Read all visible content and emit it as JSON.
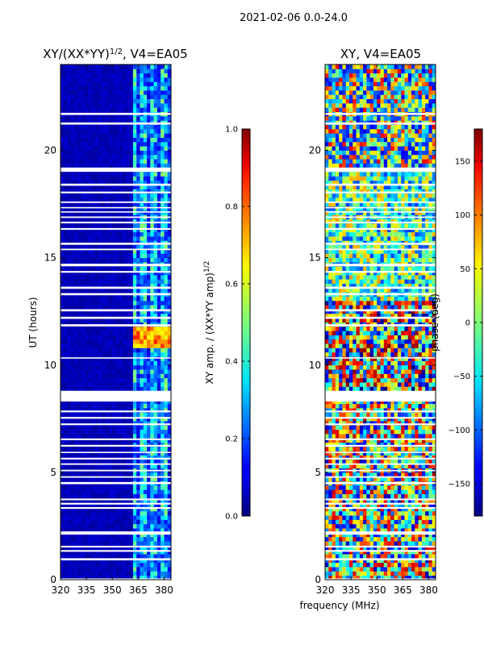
{
  "suptitle": "2021-02-06 0.0-24.0",
  "chart_data": [
    {
      "type": "heatmap",
      "title": "XY/(XX*YY)^(1/2), V4=EA05",
      "title_parts": [
        "XY/(XX*YY)",
        "1/2",
        ", V4=EA05"
      ],
      "xlabel": "",
      "ylabel": "UT (hours)",
      "xlim": [
        320,
        384
      ],
      "ylim": [
        0,
        24
      ],
      "xticks": [
        320,
        335,
        350,
        365,
        380
      ],
      "yticks": [
        0,
        5,
        10,
        15,
        20
      ],
      "colorbar": {
        "label": "XY amp. / (XX*YY amp)^(1/2)",
        "label_parts": [
          "XY amp. / (XX*YY amp)",
          "1/2"
        ],
        "range": [
          0.0,
          1.0
        ],
        "ticks": [
          "0.0",
          "0.2",
          "0.4",
          "0.6",
          "0.8",
          "1.0"
        ],
        "colormap": "jet"
      },
      "description_values": {
        "low_freq_band_mhz": [
          320,
          360
        ],
        "low_freq_level": 0.03,
        "high_freq_band_mhz": [
          362,
          384
        ],
        "high_freq_level": 0.35,
        "peak_level": 0.85,
        "peak_ut_hours": [
          10.8,
          11.8
        ]
      }
    },
    {
      "type": "heatmap",
      "title": "XY, V4=EA05",
      "xlabel": "frequency (MHz)",
      "ylabel": "",
      "xlim": [
        320,
        384
      ],
      "ylim": [
        0,
        24
      ],
      "xticks": [
        320,
        335,
        350,
        365,
        380
      ],
      "yticks": [
        0,
        5,
        10,
        15,
        20
      ],
      "colorbar": {
        "label": "phase (deg)",
        "range": [
          -180,
          180
        ],
        "ticks": [
          "150",
          "100",
          "50",
          "0",
          "−50",
          "−100",
          "−150"
        ],
        "tick_values": [
          150,
          100,
          50,
          0,
          -50,
          -100,
          -150
        ],
        "colormap": "jet"
      }
    }
  ],
  "flag_gaps_ut_hours": [
    [
      21.65,
      21.75
    ],
    [
      21.2,
      21.3
    ],
    [
      19.0,
      19.2
    ],
    [
      18.35,
      18.45
    ],
    [
      18.0,
      18.08
    ],
    [
      17.55,
      17.62
    ],
    [
      17.3,
      17.36
    ],
    [
      17.1,
      17.16
    ],
    [
      16.85,
      16.92
    ],
    [
      16.6,
      16.68
    ],
    [
      16.3,
      16.38
    ],
    [
      15.6,
      15.7
    ],
    [
      15.35,
      15.42
    ],
    [
      14.6,
      14.72
    ],
    [
      14.3,
      14.38
    ],
    [
      13.55,
      13.65
    ],
    [
      13.25,
      13.35
    ],
    [
      12.5,
      12.6
    ],
    [
      12.15,
      12.25
    ],
    [
      11.8,
      11.9
    ],
    [
      10.3,
      10.36
    ],
    [
      8.3,
      8.8
    ],
    [
      7.8,
      7.88
    ],
    [
      7.5,
      7.58
    ],
    [
      7.2,
      7.28
    ],
    [
      6.5,
      6.58
    ],
    [
      6.2,
      6.28
    ],
    [
      5.9,
      5.96
    ],
    [
      5.6,
      5.68
    ],
    [
      5.35,
      5.42
    ],
    [
      5.05,
      5.12
    ],
    [
      4.75,
      4.82
    ],
    [
      4.45,
      4.55
    ],
    [
      3.7,
      3.78
    ],
    [
      3.5,
      3.58
    ],
    [
      3.3,
      3.38
    ],
    [
      2.1,
      2.25
    ],
    [
      1.5,
      1.58
    ],
    [
      1.3,
      1.38
    ],
    [
      0.9,
      1.0
    ],
    [
      0.0,
      0.06
    ]
  ]
}
